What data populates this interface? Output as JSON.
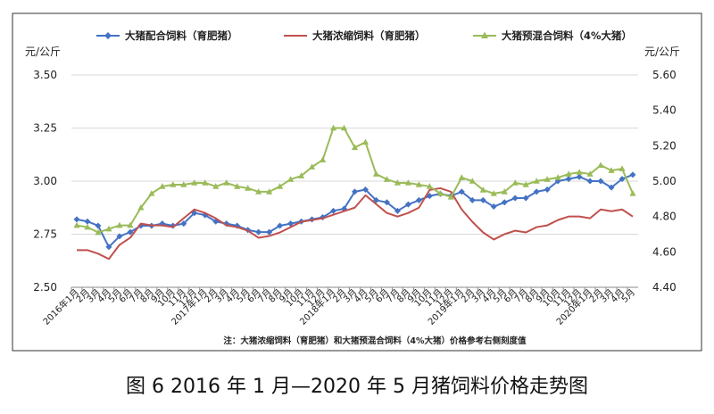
{
  "chart_data": {
    "type": "line",
    "caption": "图 6 2016 年 1 月—2020 年 5 月猪饲料价格走势图",
    "note": "注：大猪浓缩饲料（育肥猪）和大猪预混合饲料（4%大猪）价格参考右侧刻度值",
    "y_left_label": "元/公斤",
    "y_right_label": "元/公斤",
    "y_left_ticks": [
      "3.50",
      "3.25",
      "3.00",
      "2.75",
      "2.50"
    ],
    "y_right_ticks": [
      "5.60",
      "5.40",
      "5.20",
      "5.00",
      "4.80",
      "4.60",
      "4.40"
    ],
    "y_left_range": [
      2.5,
      3.5
    ],
    "y_right_range": [
      4.4,
      5.6
    ],
    "x_labels": [
      "2016年1月",
      "2月",
      "3月",
      "4月",
      "5月",
      "6月",
      "7月",
      "8月",
      "9月",
      "10月",
      "11月",
      "12月",
      "2017年1月",
      "2月",
      "3月",
      "4月",
      "5月",
      "6月",
      "7月",
      "8月",
      "9月",
      "10月",
      "11月",
      "12月",
      "2018年1月",
      "2月",
      "3月",
      "4月",
      "5月",
      "6月",
      "7月",
      "8月",
      "9月",
      "10月",
      "11月",
      "12月",
      "2019年1月",
      "2月",
      "3月",
      "4月",
      "5月",
      "6月",
      "7月",
      "8月",
      "9月",
      "10月",
      "11月",
      "12月",
      "2020年1月",
      "2月",
      "3月",
      "4月",
      "5月"
    ],
    "series": [
      {
        "name": "大猪配合饲料（育肥猪）",
        "axis": "left",
        "color": "#4472c4",
        "marker": "diamond",
        "values": [
          2.82,
          2.81,
          2.79,
          2.69,
          2.74,
          2.76,
          2.79,
          2.79,
          2.8,
          2.79,
          2.8,
          2.85,
          2.84,
          2.81,
          2.8,
          2.79,
          2.77,
          2.76,
          2.76,
          2.79,
          2.8,
          2.81,
          2.82,
          2.83,
          2.86,
          2.87,
          2.95,
          2.96,
          2.91,
          2.9,
          2.86,
          2.89,
          2.91,
          2.93,
          2.94,
          2.93,
          2.95,
          2.91,
          2.91,
          2.88,
          2.9,
          2.92,
          2.92,
          2.95,
          2.96,
          3.0,
          3.01,
          3.02,
          3.0,
          3.0,
          2.97,
          3.01,
          3.03
        ]
      },
      {
        "name": "大猪浓缩饲料（育肥猪）",
        "axis": "right",
        "color": "#c0504d",
        "marker": "none",
        "values": [
          4.61,
          4.61,
          4.59,
          4.56,
          4.64,
          4.68,
          4.76,
          4.75,
          4.75,
          4.74,
          4.79,
          4.84,
          4.82,
          4.79,
          4.75,
          4.74,
          4.72,
          4.68,
          4.69,
          4.71,
          4.74,
          4.77,
          4.78,
          4.79,
          4.81,
          4.83,
          4.85,
          4.92,
          4.87,
          4.82,
          4.8,
          4.82,
          4.85,
          4.95,
          4.96,
          4.94,
          4.84,
          4.77,
          4.71,
          4.67,
          4.7,
          4.72,
          4.71,
          4.74,
          4.75,
          4.78,
          4.8,
          4.8,
          4.79,
          4.84,
          4.83,
          4.84,
          4.8
        ]
      },
      {
        "name": "大猪预混合饲料（4%大猪）",
        "axis": "right",
        "color": "#9bbb59",
        "marker": "triangle",
        "values": [
          4.75,
          4.74,
          4.71,
          4.73,
          4.75,
          4.75,
          4.85,
          4.93,
          4.97,
          4.98,
          4.98,
          4.99,
          4.99,
          4.97,
          4.99,
          4.97,
          4.96,
          4.94,
          4.94,
          4.97,
          5.01,
          5.03,
          5.08,
          5.12,
          5.3,
          5.3,
          5.19,
          5.22,
          5.04,
          5.01,
          4.99,
          4.99,
          4.98,
          4.97,
          4.93,
          4.91,
          5.02,
          5.0,
          4.95,
          4.93,
          4.94,
          4.99,
          4.98,
          5.0,
          5.01,
          5.02,
          5.04,
          5.05,
          5.04,
          5.09,
          5.06,
          5.07,
          4.93
        ]
      }
    ]
  }
}
